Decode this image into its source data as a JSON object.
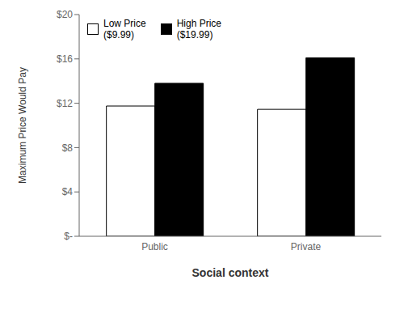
{
  "chart_data": {
    "type": "bar",
    "categories": [
      "Public",
      "Private"
    ],
    "series": [
      {
        "name": "Low Price\n($9.99)",
        "color": "#ffffff",
        "values": [
          11.75,
          11.45
        ]
      },
      {
        "name": "High Price\n($19.99)",
        "color": "#000000",
        "values": [
          13.8,
          16.1
        ]
      }
    ],
    "xlabel": "Social context",
    "ylabel": "Maximum Price Would Pay",
    "ylim": [
      0,
      20
    ],
    "yticks": [
      {
        "value": 0,
        "label": "$-"
      },
      {
        "value": 4,
        "label": "$4"
      },
      {
        "value": 8,
        "label": "$8"
      },
      {
        "value": 12,
        "label": "$12"
      },
      {
        "value": 16,
        "label": "$16"
      },
      {
        "value": 20,
        "label": "$20"
      }
    ],
    "grid": false,
    "legend": "upper left"
  }
}
